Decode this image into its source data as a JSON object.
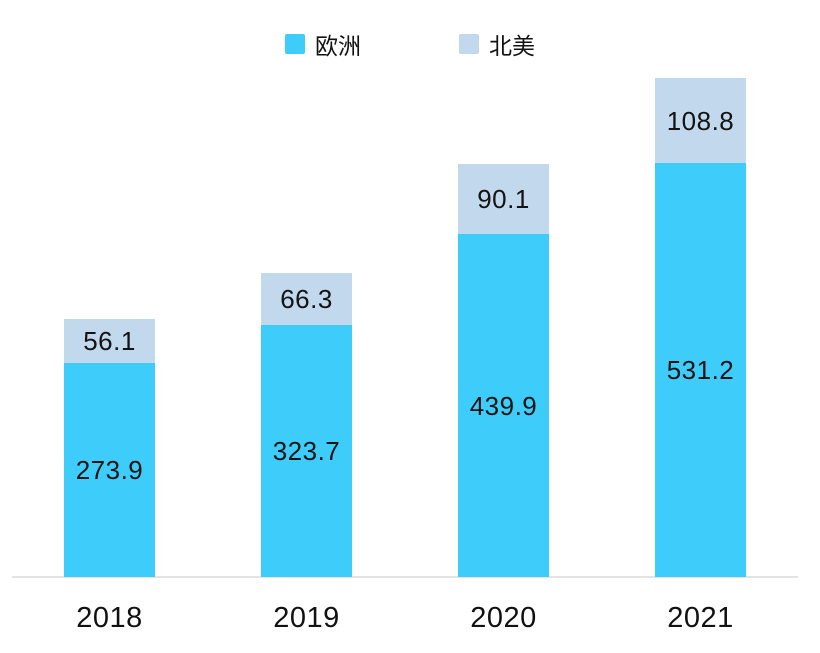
{
  "colors": {
    "europe_series": "#3ECDFA",
    "north_america_series": "#C2D8ED",
    "text": "#121212",
    "axis_line": "#E3E3E3",
    "background": "#FFFFFF"
  },
  "legend": [
    {
      "label": "欧洲",
      "color": "#3ECDFA",
      "key": "europe"
    },
    {
      "label": "北美",
      "color": "#C2D8ED",
      "key": "north-america"
    }
  ],
  "chart_data": {
    "type": "bar",
    "stacked": true,
    "orientation": "vertical",
    "title": "",
    "xlabel": "",
    "ylabel": "",
    "categories": [
      "2018",
      "2019",
      "2020",
      "2021"
    ],
    "series": [
      {
        "name": "欧洲",
        "key": "europe",
        "color": "#3ECDFA",
        "values": [
          273.9,
          323.7,
          439.9,
          531.2
        ]
      },
      {
        "name": "北美",
        "key": "north-america",
        "color": "#C2D8ED",
        "values": [
          56.1,
          66.3,
          90.1,
          108.8
        ]
      }
    ],
    "totals": [
      330.0,
      390.0,
      530.0,
      640.0
    ],
    "value_labels": "inside-center, one decimal",
    "legend_position": "top-center",
    "ylim": [
      0,
      660
    ],
    "y_axis_visible": false,
    "gridlines": false,
    "baseline_visible": true
  }
}
